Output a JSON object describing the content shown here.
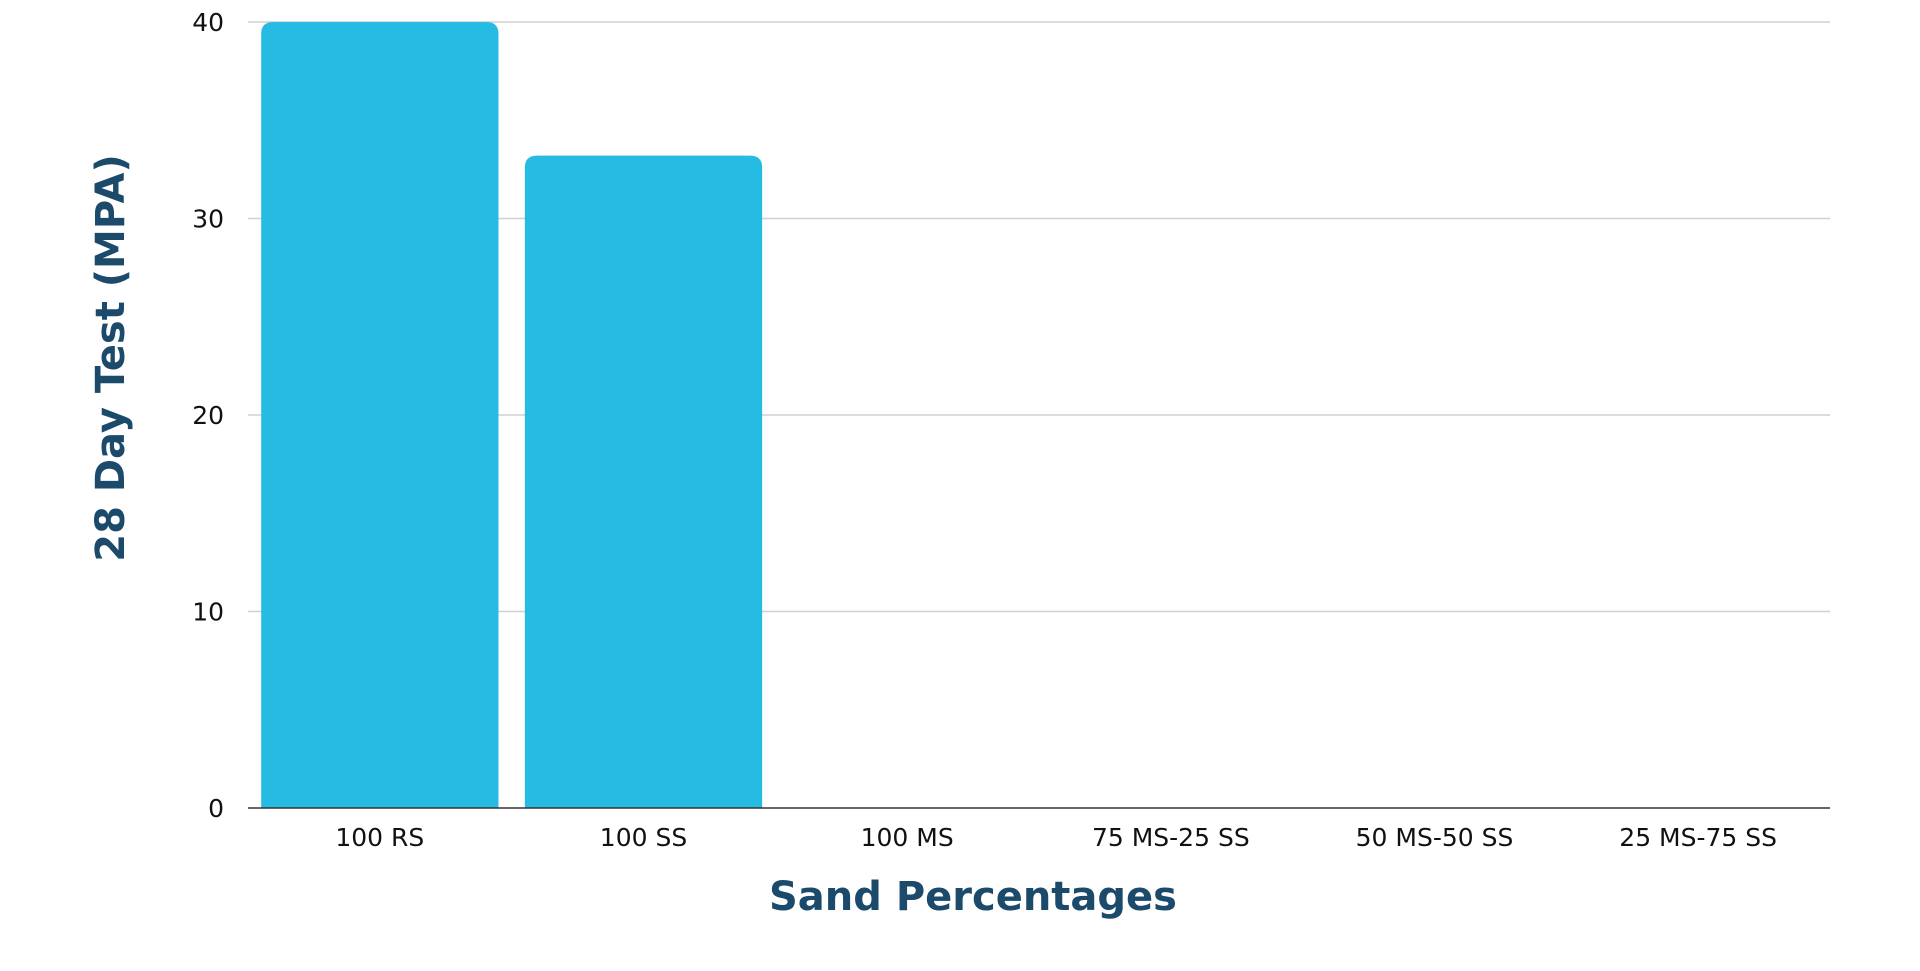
{
  "chart_data": {
    "type": "bar",
    "title": "",
    "categories": [
      "100 RS",
      "100 SS",
      "100 MS",
      "75 MS-25 SS",
      "50 MS-50 SS",
      "25 MS-75 SS"
    ],
    "values": [
      40,
      33.2,
      0,
      0,
      0,
      0
    ],
    "xlabel": "Sand Percentages",
    "ylabel": "28 Day Test (MPA)",
    "ylim": [
      0,
      40
    ],
    "yticks": [
      0,
      10,
      20,
      30,
      40
    ],
    "grid": true,
    "bar_color": "#26bbe2",
    "axis_title_color": "#1b4a6b"
  }
}
